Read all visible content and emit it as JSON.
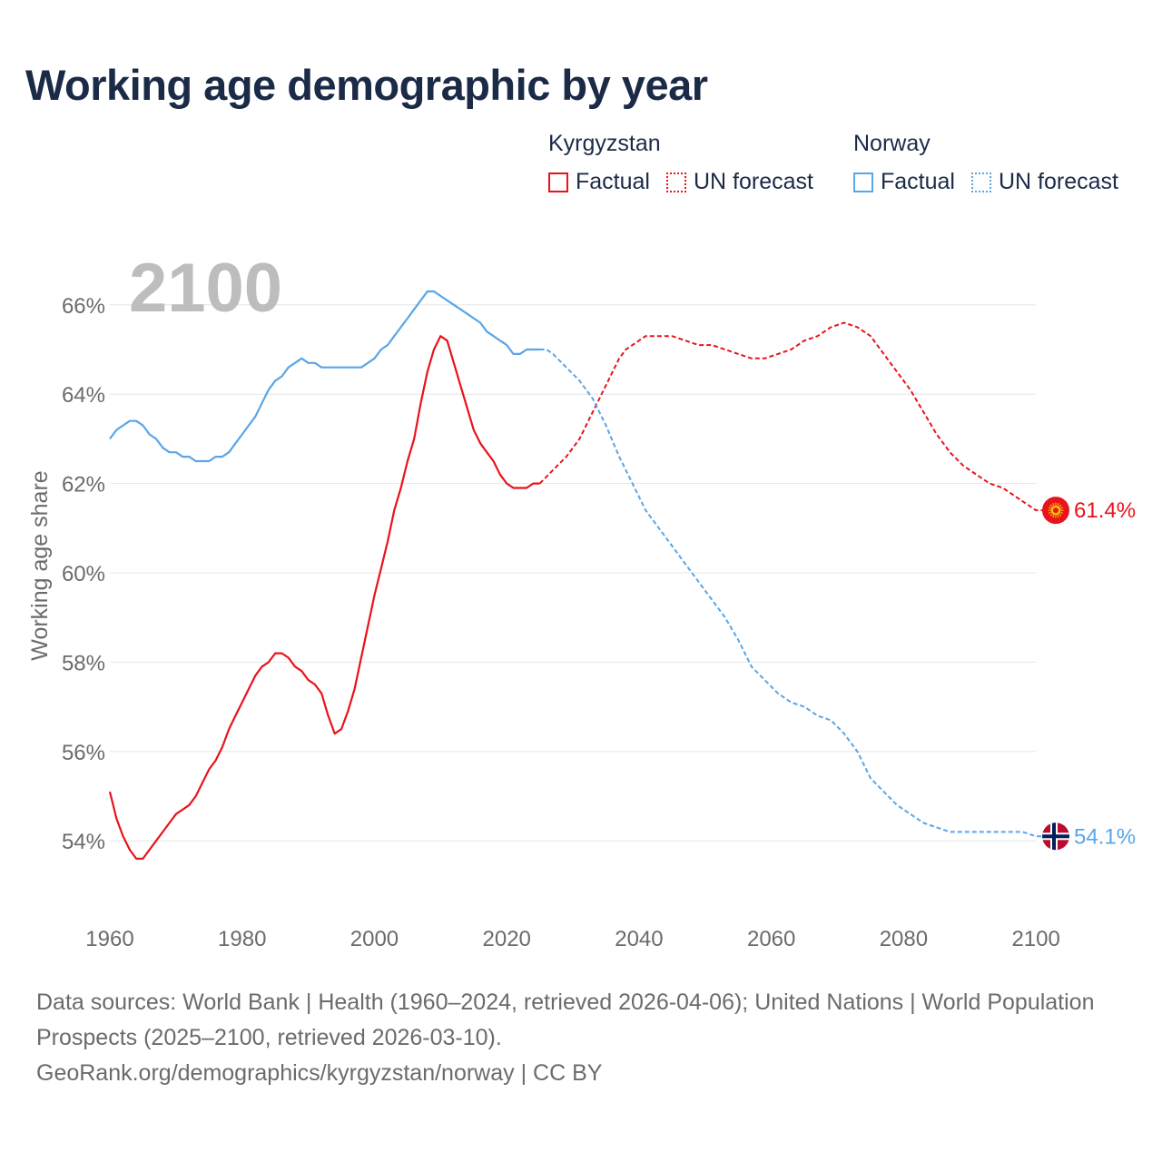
{
  "title": "Working age demographic by year",
  "legend": {
    "groups": [
      {
        "country": "Kyrgyzstan",
        "factual": "Factual",
        "forecast": "UN forecast",
        "color": "#e8131b"
      },
      {
        "country": "Norway",
        "factual": "Factual",
        "forecast": "UN forecast",
        "color": "#5aa5e6"
      }
    ]
  },
  "footer": {
    "sources": "Data sources: World Bank | Health (1960–2024, retrieved 2026-04-06); United Nations | World Population Prospects (2025–2100, retrieved 2026-03-10).",
    "credit": "GeoRank.org/demographics/kyrgyzstan/norway | CC BY"
  },
  "chart_data": {
    "type": "line",
    "title": "Working age demographic by year",
    "ylabel": "Working age share",
    "xlabel": "",
    "year_watermark": "2100",
    "xlim": [
      1960,
      2103
    ],
    "ylim": [
      52.5,
      67.5
    ],
    "x_ticks": [
      1960,
      1980,
      2000,
      2020,
      2040,
      2060,
      2080,
      2100
    ],
    "y_ticks": [
      54,
      56,
      58,
      60,
      62,
      64,
      66
    ],
    "y_tick_labels": [
      "54%",
      "56%",
      "58%",
      "60%",
      "62%",
      "64%",
      "66%"
    ],
    "grid": true,
    "series": [
      {
        "name": "Kyrgyzstan",
        "color": "#e8131b",
        "end_label": "61.4%",
        "factual": [
          [
            1960,
            55.1
          ],
          [
            1961,
            54.5
          ],
          [
            1962,
            54.1
          ],
          [
            1963,
            53.8
          ],
          [
            1964,
            53.6
          ],
          [
            1965,
            53.6
          ],
          [
            1966,
            53.8
          ],
          [
            1967,
            54.0
          ],
          [
            1968,
            54.2
          ],
          [
            1969,
            54.4
          ],
          [
            1970,
            54.6
          ],
          [
            1971,
            54.7
          ],
          [
            1972,
            54.8
          ],
          [
            1973,
            55.0
          ],
          [
            1974,
            55.3
          ],
          [
            1975,
            55.6
          ],
          [
            1976,
            55.8
          ],
          [
            1977,
            56.1
          ],
          [
            1978,
            56.5
          ],
          [
            1979,
            56.8
          ],
          [
            1980,
            57.1
          ],
          [
            1981,
            57.4
          ],
          [
            1982,
            57.7
          ],
          [
            1983,
            57.9
          ],
          [
            1984,
            58.0
          ],
          [
            1985,
            58.2
          ],
          [
            1986,
            58.2
          ],
          [
            1987,
            58.1
          ],
          [
            1988,
            57.9
          ],
          [
            1989,
            57.8
          ],
          [
            1990,
            57.6
          ],
          [
            1991,
            57.5
          ],
          [
            1992,
            57.3
          ],
          [
            1993,
            56.8
          ],
          [
            1994,
            56.4
          ],
          [
            1995,
            56.5
          ],
          [
            1996,
            56.9
          ],
          [
            1997,
            57.4
          ],
          [
            1998,
            58.1
          ],
          [
            1999,
            58.8
          ],
          [
            2000,
            59.5
          ],
          [
            2001,
            60.1
          ],
          [
            2002,
            60.7
          ],
          [
            2003,
            61.4
          ],
          [
            2004,
            61.9
          ],
          [
            2005,
            62.5
          ],
          [
            2006,
            63.0
          ],
          [
            2007,
            63.8
          ],
          [
            2008,
            64.5
          ],
          [
            2009,
            65.0
          ],
          [
            2010,
            65.3
          ],
          [
            2011,
            65.2
          ],
          [
            2012,
            64.7
          ],
          [
            2013,
            64.2
          ],
          [
            2014,
            63.7
          ],
          [
            2015,
            63.2
          ],
          [
            2016,
            62.9
          ],
          [
            2017,
            62.7
          ],
          [
            2018,
            62.5
          ],
          [
            2019,
            62.2
          ],
          [
            2020,
            62.0
          ],
          [
            2021,
            61.9
          ],
          [
            2022,
            61.9
          ],
          [
            2023,
            61.9
          ],
          [
            2024,
            62.0
          ],
          [
            2025,
            62.0
          ]
        ],
        "forecast": [
          [
            2025,
            62.0
          ],
          [
            2027,
            62.3
          ],
          [
            2029,
            62.6
          ],
          [
            2031,
            63.0
          ],
          [
            2033,
            63.6
          ],
          [
            2035,
            64.2
          ],
          [
            2037,
            64.8
          ],
          [
            2038,
            65.0
          ],
          [
            2040,
            65.2
          ],
          [
            2041,
            65.3
          ],
          [
            2043,
            65.3
          ],
          [
            2045,
            65.3
          ],
          [
            2047,
            65.2
          ],
          [
            2049,
            65.1
          ],
          [
            2051,
            65.1
          ],
          [
            2053,
            65.0
          ],
          [
            2055,
            64.9
          ],
          [
            2057,
            64.8
          ],
          [
            2059,
            64.8
          ],
          [
            2061,
            64.9
          ],
          [
            2063,
            65.0
          ],
          [
            2065,
            65.2
          ],
          [
            2067,
            65.3
          ],
          [
            2069,
            65.5
          ],
          [
            2071,
            65.6
          ],
          [
            2073,
            65.5
          ],
          [
            2075,
            65.3
          ],
          [
            2077,
            64.9
          ],
          [
            2079,
            64.5
          ],
          [
            2081,
            64.1
          ],
          [
            2083,
            63.6
          ],
          [
            2085,
            63.1
          ],
          [
            2087,
            62.7
          ],
          [
            2089,
            62.4
          ],
          [
            2091,
            62.2
          ],
          [
            2093,
            62.0
          ],
          [
            2095,
            61.9
          ],
          [
            2097,
            61.7
          ],
          [
            2099,
            61.5
          ],
          [
            2100,
            61.4
          ],
          [
            2103,
            61.4
          ]
        ]
      },
      {
        "name": "Norway",
        "color": "#5aa5e6",
        "end_label": "54.1%",
        "factual": [
          [
            1960,
            63.0
          ],
          [
            1961,
            63.2
          ],
          [
            1962,
            63.3
          ],
          [
            1963,
            63.4
          ],
          [
            1964,
            63.4
          ],
          [
            1965,
            63.3
          ],
          [
            1966,
            63.1
          ],
          [
            1967,
            63.0
          ],
          [
            1968,
            62.8
          ],
          [
            1969,
            62.7
          ],
          [
            1970,
            62.7
          ],
          [
            1971,
            62.6
          ],
          [
            1972,
            62.6
          ],
          [
            1973,
            62.5
          ],
          [
            1974,
            62.5
          ],
          [
            1975,
            62.5
          ],
          [
            1976,
            62.6
          ],
          [
            1977,
            62.6
          ],
          [
            1978,
            62.7
          ],
          [
            1979,
            62.9
          ],
          [
            1980,
            63.1
          ],
          [
            1981,
            63.3
          ],
          [
            1982,
            63.5
          ],
          [
            1983,
            63.8
          ],
          [
            1984,
            64.1
          ],
          [
            1985,
            64.3
          ],
          [
            1986,
            64.4
          ],
          [
            1987,
            64.6
          ],
          [
            1988,
            64.7
          ],
          [
            1989,
            64.8
          ],
          [
            1990,
            64.7
          ],
          [
            1991,
            64.7
          ],
          [
            1992,
            64.6
          ],
          [
            1993,
            64.6
          ],
          [
            1994,
            64.6
          ],
          [
            1995,
            64.6
          ],
          [
            1996,
            64.6
          ],
          [
            1997,
            64.6
          ],
          [
            1998,
            64.6
          ],
          [
            1999,
            64.7
          ],
          [
            2000,
            64.8
          ],
          [
            2001,
            65.0
          ],
          [
            2002,
            65.1
          ],
          [
            2003,
            65.3
          ],
          [
            2004,
            65.5
          ],
          [
            2005,
            65.7
          ],
          [
            2006,
            65.9
          ],
          [
            2007,
            66.1
          ],
          [
            2008,
            66.3
          ],
          [
            2009,
            66.3
          ],
          [
            2010,
            66.2
          ],
          [
            2011,
            66.1
          ],
          [
            2012,
            66.0
          ],
          [
            2013,
            65.9
          ],
          [
            2014,
            65.8
          ],
          [
            2015,
            65.7
          ],
          [
            2016,
            65.6
          ],
          [
            2017,
            65.4
          ],
          [
            2018,
            65.3
          ],
          [
            2019,
            65.2
          ],
          [
            2020,
            65.1
          ],
          [
            2021,
            64.9
          ],
          [
            2022,
            64.9
          ],
          [
            2023,
            65.0
          ],
          [
            2024,
            65.0
          ],
          [
            2025,
            65.0
          ]
        ],
        "forecast": [
          [
            2025,
            65.0
          ],
          [
            2026,
            65.0
          ],
          [
            2027,
            64.9
          ],
          [
            2029,
            64.6
          ],
          [
            2031,
            64.3
          ],
          [
            2033,
            63.9
          ],
          [
            2035,
            63.3
          ],
          [
            2037,
            62.6
          ],
          [
            2039,
            62.0
          ],
          [
            2041,
            61.4
          ],
          [
            2043,
            61.0
          ],
          [
            2045,
            60.6
          ],
          [
            2047,
            60.2
          ],
          [
            2049,
            59.8
          ],
          [
            2051,
            59.4
          ],
          [
            2053,
            59.0
          ],
          [
            2055,
            58.5
          ],
          [
            2057,
            57.9
          ],
          [
            2059,
            57.6
          ],
          [
            2061,
            57.3
          ],
          [
            2063,
            57.1
          ],
          [
            2065,
            57.0
          ],
          [
            2067,
            56.8
          ],
          [
            2069,
            56.7
          ],
          [
            2071,
            56.4
          ],
          [
            2073,
            56.0
          ],
          [
            2075,
            55.4
          ],
          [
            2077,
            55.1
          ],
          [
            2079,
            54.8
          ],
          [
            2081,
            54.6
          ],
          [
            2083,
            54.4
          ],
          [
            2085,
            54.3
          ],
          [
            2087,
            54.2
          ],
          [
            2091,
            54.2
          ],
          [
            2095,
            54.2
          ],
          [
            2098,
            54.2
          ],
          [
            2100,
            54.1
          ],
          [
            2103,
            54.1
          ]
        ]
      }
    ]
  }
}
